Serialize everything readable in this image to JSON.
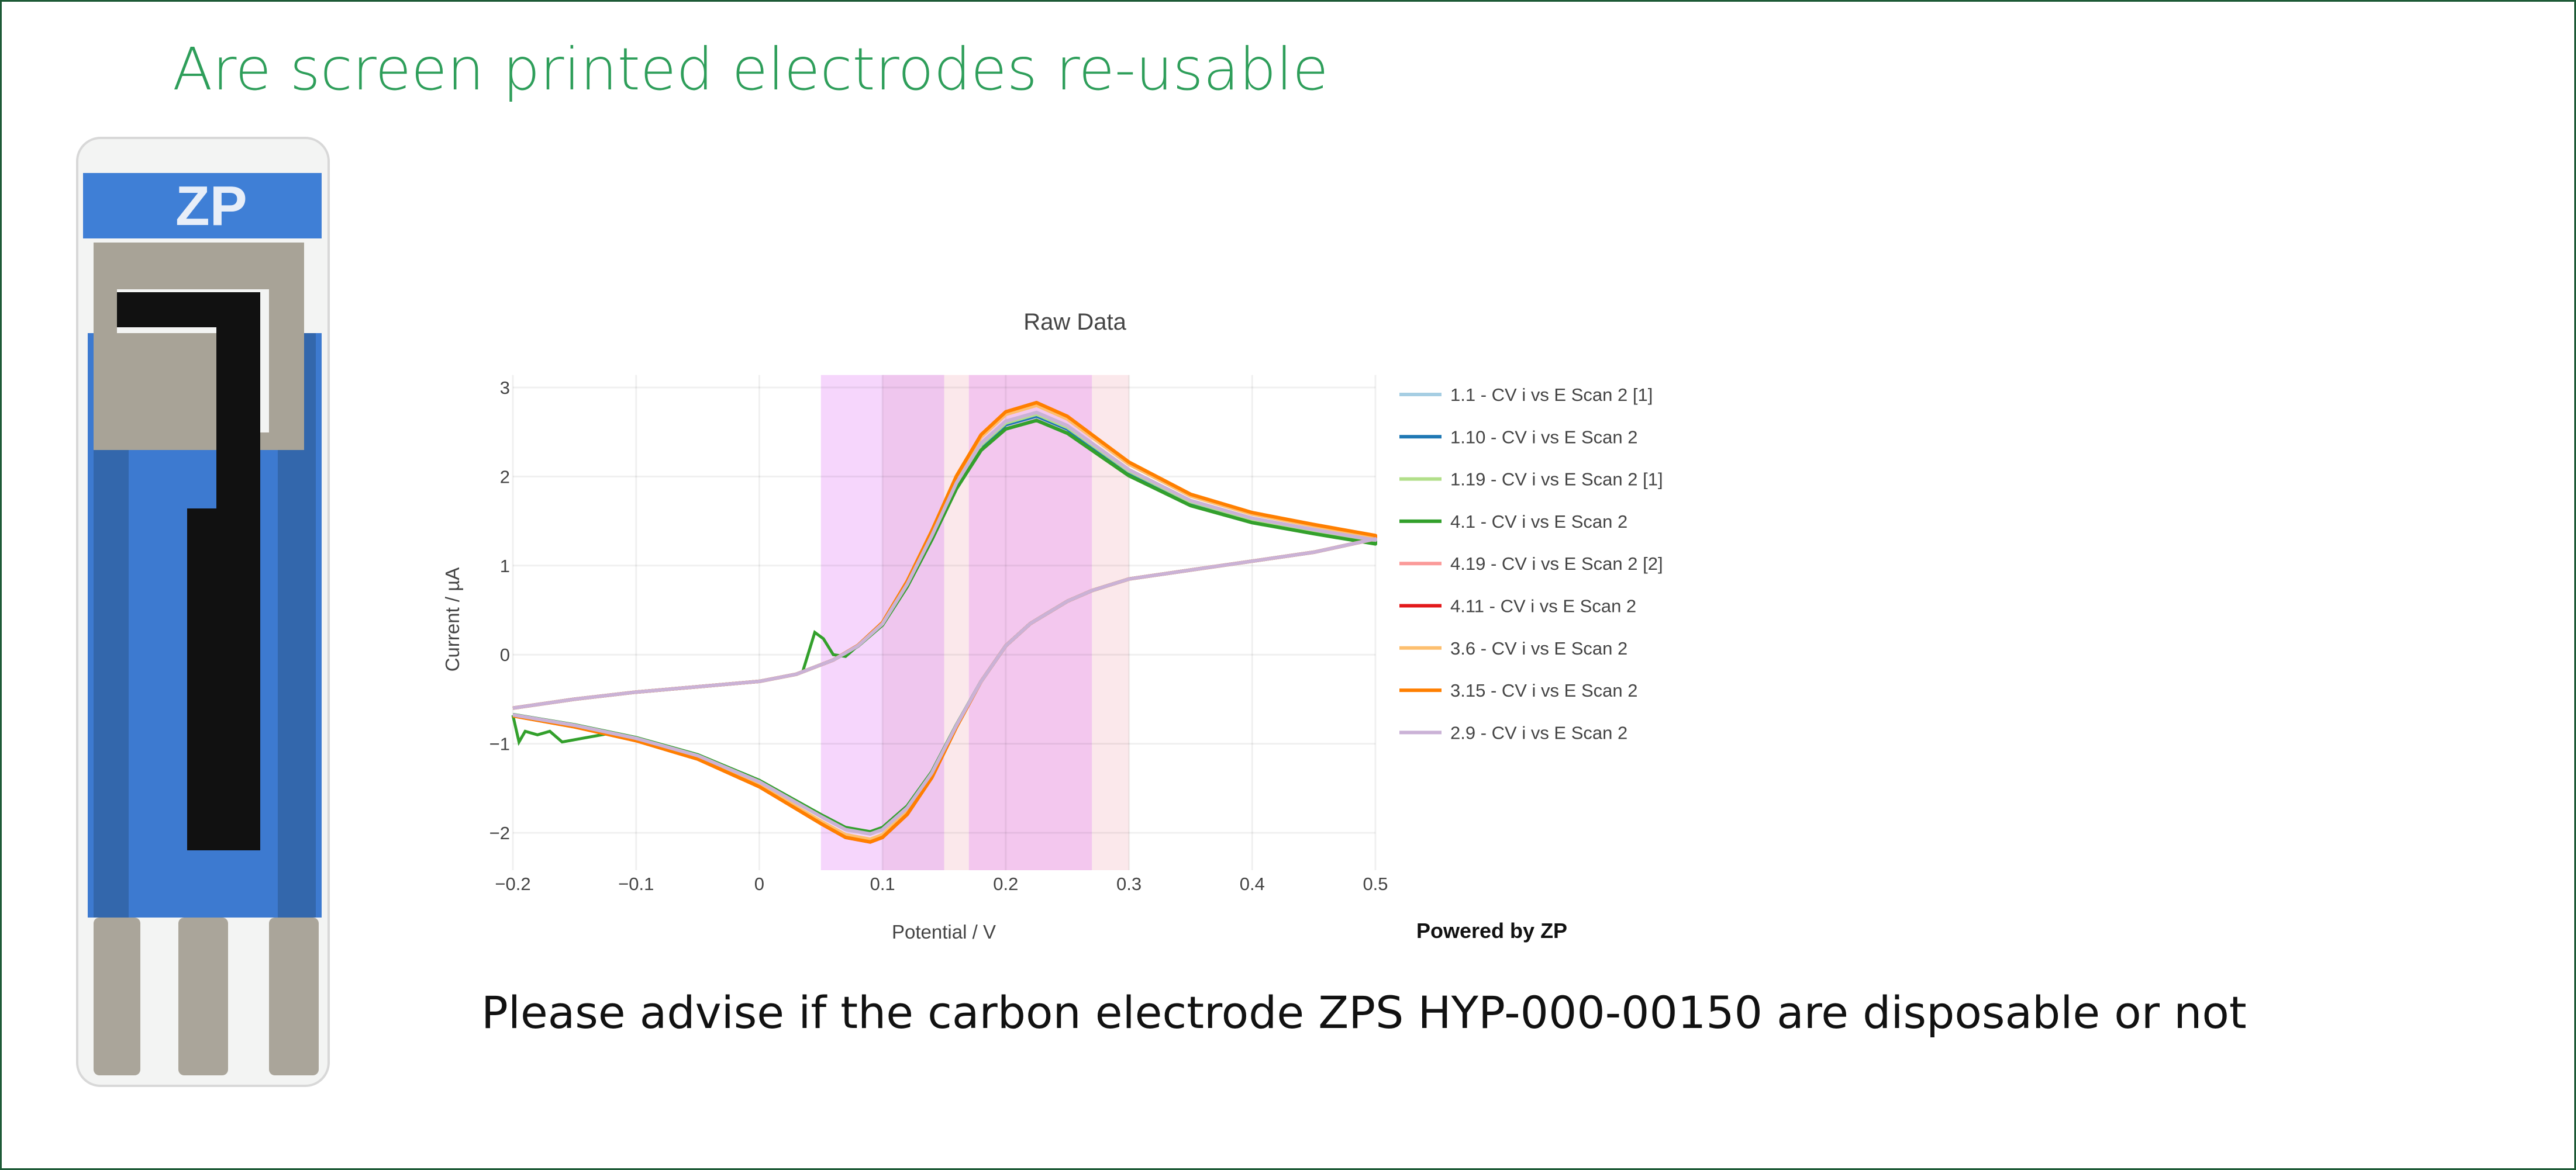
{
  "slide": {
    "title": "Are screen printed electrodes re-usable",
    "caption": "Please advise if the carbon electrode ZPS HYP-000-00150 are disposable or not",
    "powered_by": "Powered by ZP",
    "electrode_logo_text": "ZP",
    "title_color": "#2e9e5a",
    "border_color": "#1d5a36"
  },
  "chart_data": {
    "type": "line",
    "title": "Raw Data",
    "xlabel": "Potential / V",
    "ylabel": "Current / µA",
    "xlim": [
      -0.2,
      0.5
    ],
    "ylim": [
      -2.42,
      3.14
    ],
    "xticks": [
      "-0.2",
      "-0.1",
      "0",
      "0.1",
      "0.2",
      "0.3",
      "0.4",
      "0.5"
    ],
    "xtick_values": [
      -0.2,
      -0.1,
      0,
      0.1,
      0.2,
      0.3,
      0.4,
      0.5
    ],
    "yticks": [
      "3",
      "2",
      "1",
      "0",
      "−1",
      "−2"
    ],
    "ytick_values": [
      3,
      2,
      1,
      0,
      -1,
      -2
    ],
    "grid": true,
    "legend_position": "right",
    "shaded_regions": [
      {
        "x0": 0.05,
        "x1": 0.15,
        "color": "#f6d6fc"
      },
      {
        "x0": 0.1,
        "x1": 0.15,
        "color": "#efc6ee"
      },
      {
        "x0": 0.15,
        "x1": 0.17,
        "color": "#fbe8eb"
      },
      {
        "x0": 0.17,
        "x1": 0.27,
        "color": "#f3c7ee"
      },
      {
        "x0": 0.27,
        "x1": 0.3,
        "color": "#fbe8eb"
      }
    ],
    "forward_scan": [
      [
        -0.2,
        -0.6
      ],
      [
        -0.15,
        -0.5
      ],
      [
        -0.1,
        -0.42
      ],
      [
        -0.05,
        -0.36
      ],
      [
        0,
        -0.3
      ],
      [
        0.03,
        -0.22
      ],
      [
        0.06,
        -0.06
      ],
      [
        0.08,
        0.1
      ],
      [
        0.1,
        0.35
      ],
      [
        0.12,
        0.8
      ],
      [
        0.14,
        1.35
      ],
      [
        0.16,
        1.95
      ],
      [
        0.18,
        2.4
      ],
      [
        0.2,
        2.65
      ],
      [
        0.225,
        2.75
      ],
      [
        0.25,
        2.6
      ],
      [
        0.28,
        2.3
      ],
      [
        0.3,
        2.1
      ],
      [
        0.35,
        1.75
      ],
      [
        0.4,
        1.55
      ],
      [
        0.45,
        1.42
      ],
      [
        0.5,
        1.3
      ]
    ],
    "reverse_scan": [
      [
        0.5,
        1.3
      ],
      [
        0.45,
        1.15
      ],
      [
        0.4,
        1.05
      ],
      [
        0.35,
        0.95
      ],
      [
        0.3,
        0.85
      ],
      [
        0.27,
        0.72
      ],
      [
        0.25,
        0.6
      ],
      [
        0.22,
        0.35
      ],
      [
        0.2,
        0.1
      ],
      [
        0.18,
        -0.3
      ],
      [
        0.16,
        -0.8
      ],
      [
        0.14,
        -1.35
      ],
      [
        0.12,
        -1.75
      ],
      [
        0.1,
        -2.0
      ],
      [
        0.09,
        -2.05
      ],
      [
        0.07,
        -2.0
      ],
      [
        0.05,
        -1.85
      ],
      [
        0.0,
        -1.45
      ],
      [
        -0.05,
        -1.15
      ],
      [
        -0.1,
        -0.95
      ],
      [
        -0.15,
        -0.8
      ],
      [
        -0.2,
        -0.68
      ]
    ],
    "series": [
      {
        "name": "1.1 - CV i vs E Scan 2 [1]",
        "color": "#a6cee3",
        "anodic_peak": 2.7,
        "cathodic_peak": -2.0
      },
      {
        "name": "1.10 - CV i vs E Scan 2",
        "color": "#1f78b4",
        "anodic_peak": 2.68,
        "cathodic_peak": -1.98
      },
      {
        "name": "1.19 - CV i vs E Scan 2 [1]",
        "color": "#b2df8a",
        "anodic_peak": 2.7,
        "cathodic_peak": -2.0
      },
      {
        "name": "4.1 - CV i vs E Scan 2",
        "color": "#33a02c",
        "anodic_peak": 2.63,
        "cathodic_peak": -1.97,
        "artifacts": [
          [
            [
              0.035,
              -0.2
            ],
            [
              0.045,
              0.25
            ],
            [
              0.052,
              0.18
            ],
            [
              0.06,
              0.0
            ],
            [
              0.07,
              -0.02
            ],
            [
              0.08,
              0.1
            ]
          ],
          [
            [
              -0.2,
              -0.68
            ],
            [
              -0.195,
              -0.98
            ],
            [
              -0.19,
              -0.86
            ],
            [
              -0.18,
              -0.9
            ],
            [
              -0.17,
              -0.86
            ],
            [
              -0.16,
              -0.98
            ],
            [
              -0.12,
              -0.88
            ]
          ]
        ]
      },
      {
        "name": "4.19 - CV i vs E Scan 2 [2]",
        "color": "#fb9a99",
        "anodic_peak": 2.8,
        "cathodic_peak": -2.1
      },
      {
        "name": "4.11 - CV i vs E Scan 2",
        "color": "#e31a1c",
        "anodic_peak": 2.82,
        "cathodic_peak": -2.12
      },
      {
        "name": "3.6 - CV i vs E Scan 2",
        "color": "#fdbf6f",
        "anodic_peak": 2.8,
        "cathodic_peak": -2.08
      },
      {
        "name": "3.15 - CV i vs E Scan 2",
        "color": "#ff7f00",
        "anodic_peak": 2.83,
        "cathodic_peak": -2.12
      },
      {
        "name": "2.9 - CV i vs E Scan 2",
        "color": "#cab2d6",
        "anodic_peak": 2.72,
        "cathodic_peak": -2.0
      }
    ]
  }
}
